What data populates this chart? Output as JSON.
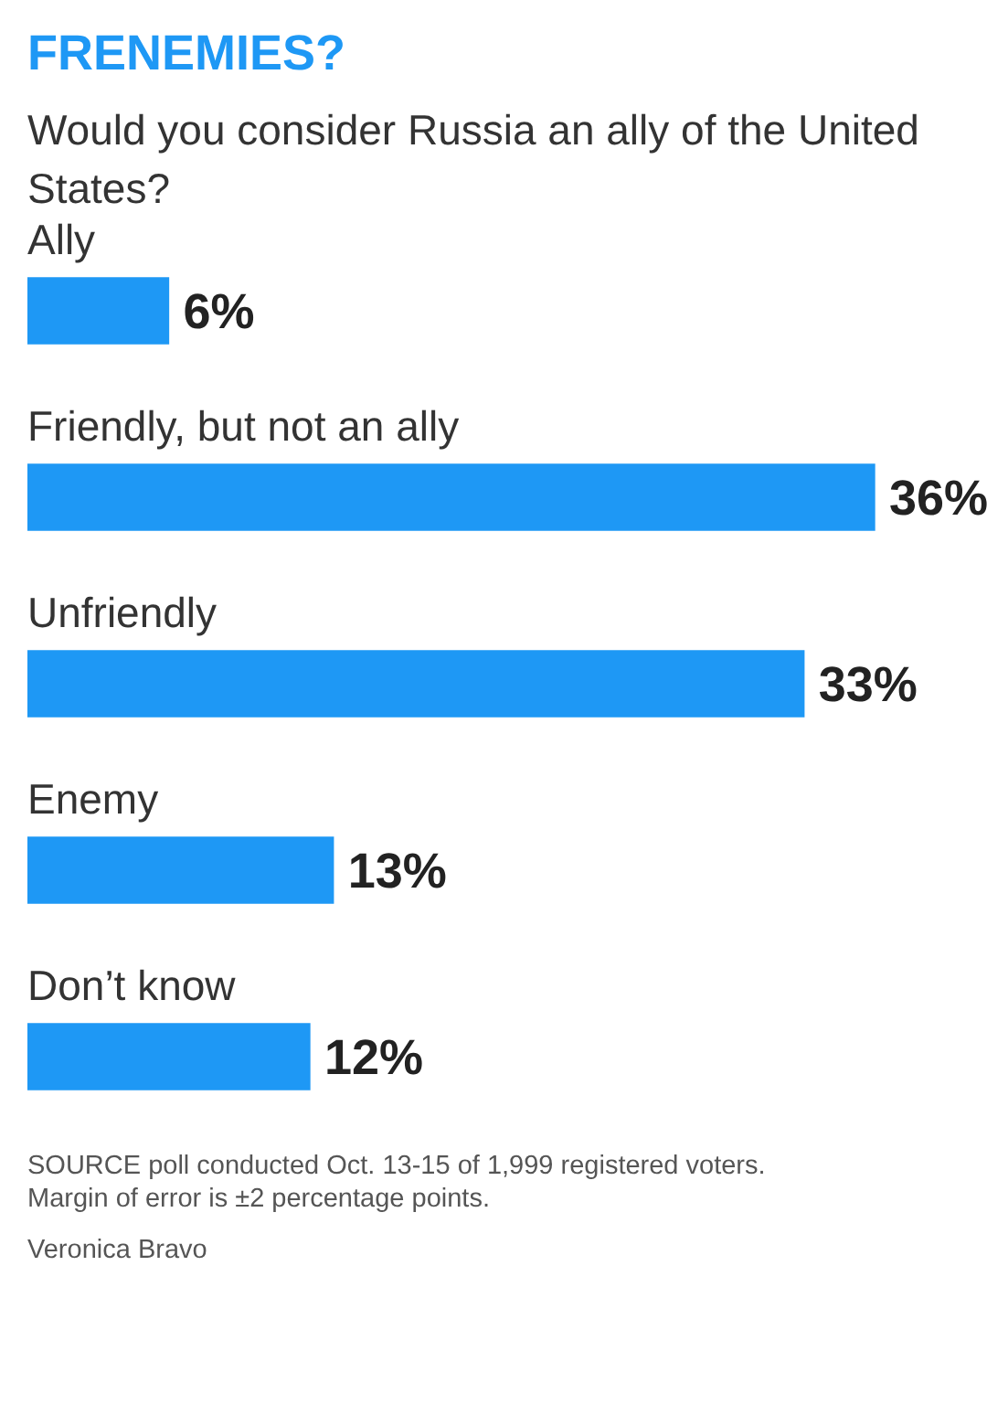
{
  "chart_data": {
    "type": "bar",
    "orientation": "horizontal",
    "title": "FRENEMIES?",
    "subtitle": "Would you consider Russia an ally of the United States?",
    "categories": [
      "Ally",
      "Friendly, but not an ally",
      "Unfriendly",
      "Enemy",
      "Don’t know"
    ],
    "values": [
      6,
      36,
      33,
      13,
      12
    ],
    "value_labels": [
      "6%",
      "36%",
      "33%",
      "13%",
      "12%"
    ],
    "color": "#1e98f5",
    "annotations": [
      "SOURCE poll conducted Oct. 13-15 of 1,999 registered voters.",
      "Margin of error is ±2 percentage points.",
      "Veronica Bravo"
    ]
  }
}
